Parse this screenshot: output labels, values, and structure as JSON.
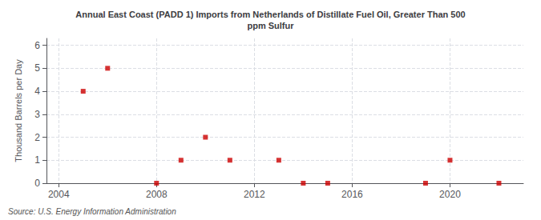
{
  "chart_data": {
    "type": "scatter",
    "title": "Annual East Coast (PADD 1) Imports from Netherlands of Distillate Fuel Oil, Greater Than 500\nppm Sulfur",
    "ylabel": "Thousand Barrels per Day",
    "source": "Source: U.S. Energy Information Administration",
    "x": [
      2005,
      2006,
      2008,
      2009,
      2010,
      2011,
      2013,
      2014,
      2015,
      2019,
      2020,
      2022
    ],
    "values": [
      4,
      5,
      0,
      1,
      2,
      1,
      1,
      0,
      0,
      0,
      1,
      0
    ],
    "color": "#cc0000",
    "marker": "square",
    "xlim": [
      2003.5,
      2023
    ],
    "xticks": [
      2004,
      2008,
      2012,
      2016,
      2020
    ],
    "ylim": [
      0,
      6.3
    ],
    "yticks": [
      0,
      1,
      2,
      3,
      4,
      5,
      6
    ],
    "grid": true
  }
}
